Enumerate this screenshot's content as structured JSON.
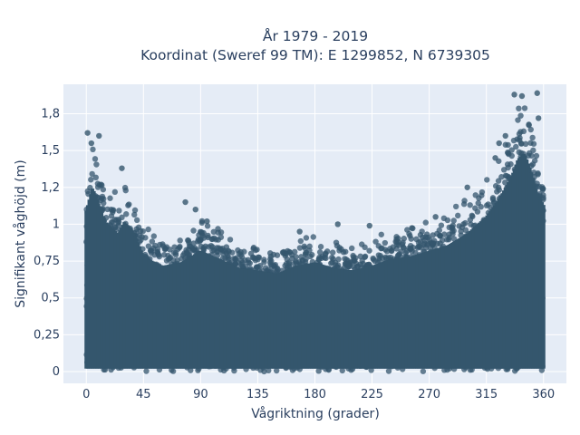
{
  "chart_data": {
    "type": "scatter",
    "title_line1": "År 1979 - 2019",
    "title_line2": "Koordinat (Sweref 99 TM): E 1299852, N 6739305",
    "xlabel": "Vågriktning (grader)",
    "ylabel": "Signifikant våghöjd (m)",
    "xlim": [
      -18,
      378
    ],
    "ylim": [
      -0.08,
      1.95
    ],
    "x_ticks": [
      0,
      45,
      90,
      135,
      180,
      225,
      270,
      315,
      360
    ],
    "x_tick_labels": [
      "0",
      "45",
      "90",
      "135",
      "180",
      "225",
      "270",
      "315",
      "360"
    ],
    "y_ticks": [
      0,
      0.25,
      0.5,
      0.75,
      1,
      1.25,
      1.5,
      1.75
    ],
    "y_tick_labels": [
      "0",
      "0,25",
      "0,5",
      "0,75",
      "1",
      "1,2",
      "1,5",
      "1,8"
    ],
    "grid": true,
    "marker_color": "#34566d",
    "background_color": "#e5ecf6",
    "envelope": {
      "x": [
        0,
        5,
        10,
        15,
        20,
        25,
        30,
        35,
        40,
        45,
        60,
        75,
        90,
        105,
        120,
        135,
        150,
        165,
        180,
        195,
        210,
        225,
        240,
        255,
        270,
        285,
        300,
        315,
        325,
        335,
        340,
        345,
        350,
        355,
        360
      ],
      "max_y": [
        1.4,
        1.6,
        1.45,
        1.3,
        1.25,
        1.2,
        1.3,
        1.25,
        1.15,
        1.0,
        0.92,
        0.95,
        1.05,
        0.98,
        0.9,
        0.88,
        0.85,
        0.92,
        0.95,
        0.9,
        0.88,
        0.92,
        0.98,
        1.0,
        1.05,
        1.1,
        1.2,
        1.35,
        1.5,
        1.7,
        1.85,
        1.9,
        1.75,
        1.55,
        1.45
      ]
    },
    "outliers": [
      {
        "x": 1,
        "y": 1.62
      },
      {
        "x": 4,
        "y": 1.55
      },
      {
        "x": 10,
        "y": 1.6
      },
      {
        "x": 28,
        "y": 1.38
      },
      {
        "x": 78,
        "y": 1.15
      },
      {
        "x": 86,
        "y": 1.1
      },
      {
        "x": 95,
        "y": 1.02
      },
      {
        "x": 168,
        "y": 0.95
      },
      {
        "x": 198,
        "y": 1.0
      },
      {
        "x": 223,
        "y": 0.99
      },
      {
        "x": 275,
        "y": 1.05
      },
      {
        "x": 300,
        "y": 1.25
      },
      {
        "x": 322,
        "y": 1.45
      },
      {
        "x": 325,
        "y": 1.55
      },
      {
        "x": 337,
        "y": 1.88
      },
      {
        "x": 343,
        "y": 1.87
      },
      {
        "x": 355,
        "y": 1.89
      },
      {
        "x": 356,
        "y": 1.72
      },
      {
        "x": 330,
        "y": 1.6
      }
    ]
  }
}
